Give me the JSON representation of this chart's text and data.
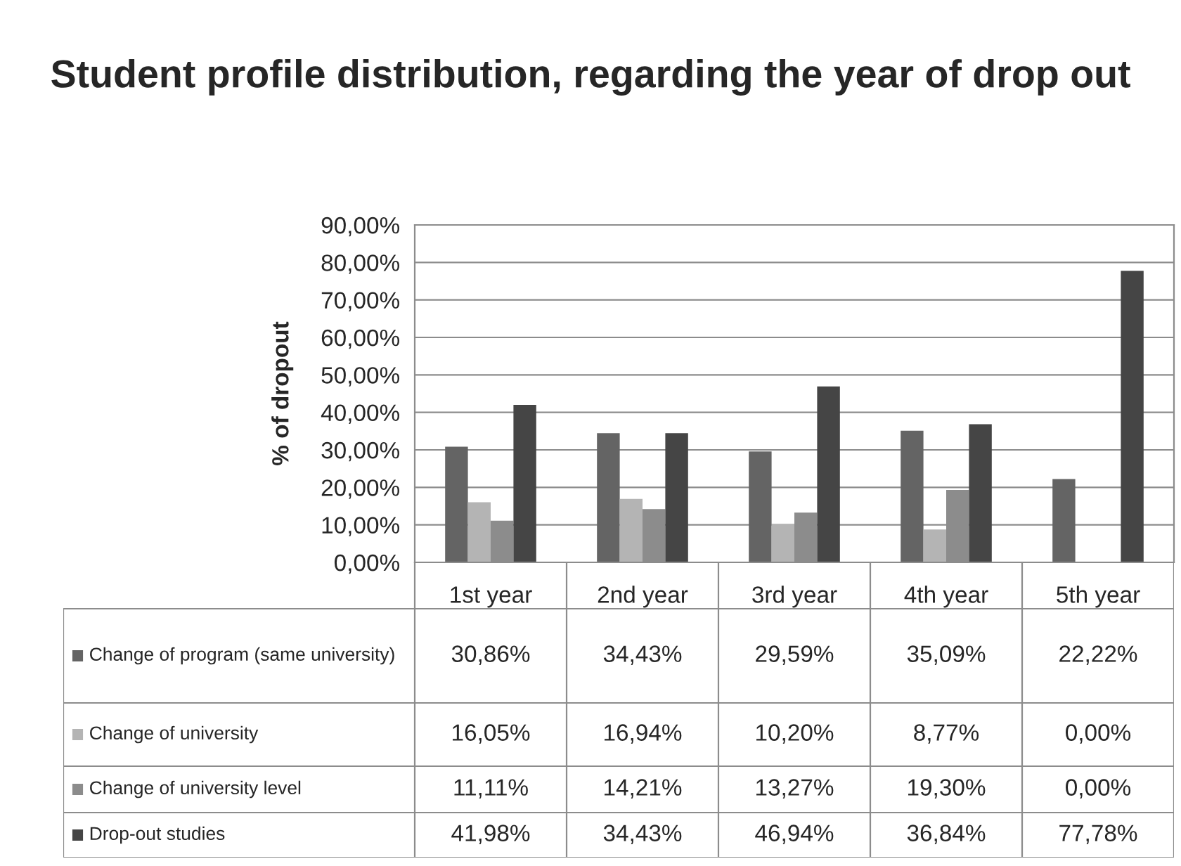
{
  "chart_data": {
    "type": "bar",
    "title": "Student profile distribution, regarding the year of drop out",
    "ylabel": "% of dropout",
    "categories": [
      "1st year",
      "2nd year",
      "3rd year",
      "4th year",
      "5th year"
    ],
    "series": [
      {
        "name": "Change of program (same university)",
        "color": "#646464",
        "values": [
          30.86,
          34.43,
          29.59,
          35.09,
          22.22
        ],
        "value_labels": [
          "30,86%",
          "34,43%",
          "29,59%",
          "35,09%",
          "22,22%"
        ]
      },
      {
        "name": "Change of university",
        "color": "#b4b4b4",
        "values": [
          16.05,
          16.94,
          10.2,
          8.77,
          0.0
        ],
        "value_labels": [
          "16,05%",
          "16,94%",
          "10,20%",
          "8,77%",
          "0,00%"
        ]
      },
      {
        "name": "Change of university level",
        "color": "#8c8c8c",
        "values": [
          11.11,
          14.21,
          13.27,
          19.3,
          0.0
        ],
        "value_labels": [
          "11,11%",
          "14,21%",
          "13,27%",
          "19,30%",
          "0,00%"
        ]
      },
      {
        "name": "Drop-out studies",
        "color": "#454545",
        "values": [
          41.98,
          34.43,
          46.94,
          36.84,
          77.78
        ],
        "value_labels": [
          "41,98%",
          "34,43%",
          "46,94%",
          "36,84%",
          "77,78%"
        ]
      }
    ],
    "ylim": [
      0,
      90
    ],
    "yticks": [
      {
        "value": 0,
        "label": "0,00%"
      },
      {
        "value": 10,
        "label": "10,00%"
      },
      {
        "value": 20,
        "label": "20,00%"
      },
      {
        "value": 30,
        "label": "30,00%"
      },
      {
        "value": 40,
        "label": "40,00%"
      },
      {
        "value": 50,
        "label": "50,00%"
      },
      {
        "value": 60,
        "label": "60,00%"
      },
      {
        "value": 70,
        "label": "70,00%"
      },
      {
        "value": 80,
        "label": "80,00%"
      },
      {
        "value": 90,
        "label": "90,00%"
      }
    ],
    "grid": "y",
    "legend": "bottom"
  }
}
